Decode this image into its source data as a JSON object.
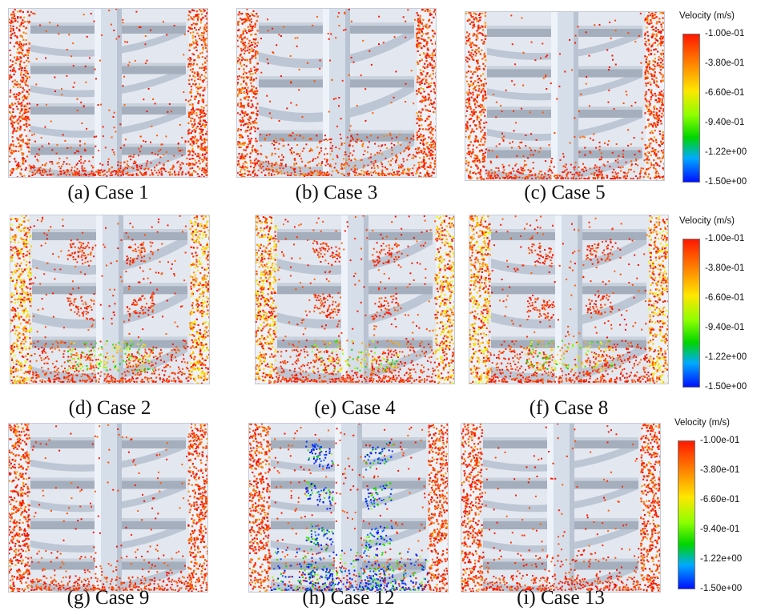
{
  "panels": [
    {
      "caption": "(a) Case 1",
      "style": "sparse",
      "flights": 4,
      "bottom": "red"
    },
    {
      "caption": "(b) Case 3",
      "style": "sparse",
      "flights": 3,
      "bottom": "red-dense"
    },
    {
      "caption": "(c) Case 5",
      "style": "sparse",
      "flights": 4,
      "bottom": "red"
    },
    {
      "caption": "(d) Case 2",
      "style": "yellow",
      "flights": 3,
      "bottom": "green-arc"
    },
    {
      "caption": "(e) Case 4",
      "style": "yellow",
      "flights": 3,
      "bottom": "yellow-arc"
    },
    {
      "caption": "(f) Case 8",
      "style": "yellow",
      "flights": 3,
      "bottom": "yellow-arc"
    },
    {
      "caption": "(g) Case 9",
      "style": "sparse",
      "flights": 4,
      "bottom": "red"
    },
    {
      "caption": "(h) Case 12",
      "style": "blue",
      "flights": 4,
      "bottom": "blue"
    },
    {
      "caption": "(i) Case 13",
      "style": "sparse",
      "flights": 4,
      "bottom": "red"
    }
  ],
  "legend": {
    "title": "Velocity (m/s)",
    "ticks": [
      "-1.00e-01",
      "-3.80e-01",
      "-6.60e-01",
      "-9.40e-01",
      "-1.22e+00",
      "-1.50e+00"
    ],
    "colors": [
      "#ff1800",
      "#ff7a00",
      "#ffe600",
      "#00d400",
      "#0010ff"
    ]
  }
}
